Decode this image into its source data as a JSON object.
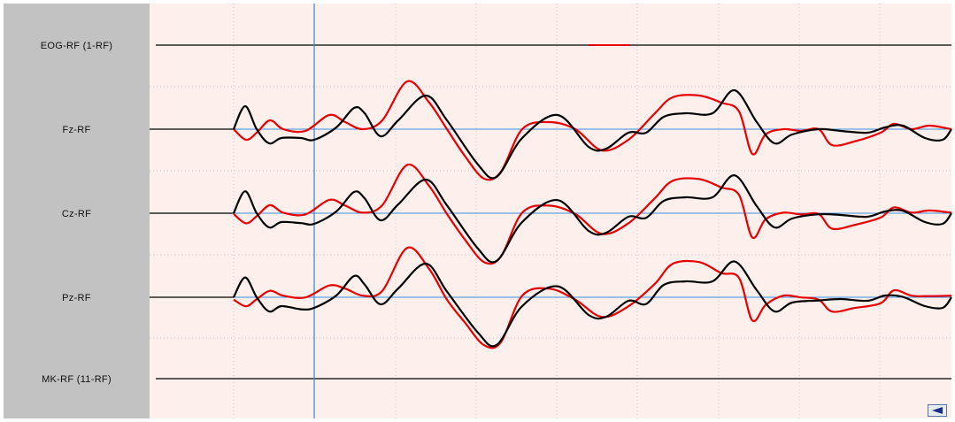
{
  "channels": [
    {
      "id": "eog",
      "label": "EOG-RF (1-RF)"
    },
    {
      "id": "fz",
      "label": "Fz-RF"
    },
    {
      "id": "cz",
      "label": "Cz-RF"
    },
    {
      "id": "pz",
      "label": "Pz-RF"
    },
    {
      "id": "mk",
      "label": "MK-RF (11-RF)"
    }
  ],
  "colors": {
    "panel": "#c2c2c2",
    "plot_background": "#fdf0ec",
    "baseline": "#3c8ede",
    "cursor": "#3c8ede",
    "grid": "#c8c8c8",
    "trace_red": "#e60000",
    "trace_black": "#000000"
  },
  "icons": {
    "scroll": "scroll-left-arrow-icon"
  }
}
